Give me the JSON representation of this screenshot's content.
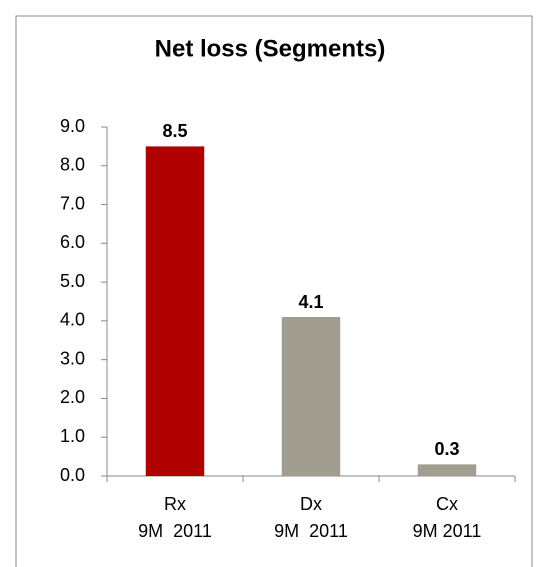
{
  "chart_data": {
    "type": "bar",
    "title": "Net loss (Segments)",
    "categories": [
      "Rx\n9M  2011",
      "Dx\n9M  2011",
      "Cx\n9M 2011"
    ],
    "values": [
      8.5,
      4.1,
      0.3
    ],
    "colors": [
      "#b00000",
      "#a29d91",
      "#a29d91"
    ],
    "ylim": [
      0,
      9
    ],
    "yticks": [
      {
        "value": 0,
        "label": "0.0"
      },
      {
        "value": 1,
        "label": "1.0"
      },
      {
        "value": 2,
        "label": "2.0"
      },
      {
        "value": 3,
        "label": "3.0"
      },
      {
        "value": 4,
        "label": "4.0"
      },
      {
        "value": 5,
        "label": "5.0"
      },
      {
        "value": 6,
        "label": "6.0"
      },
      {
        "value": 7,
        "label": "7.0"
      },
      {
        "value": 8,
        "label": "8.0"
      },
      {
        "value": 9,
        "label": "9.0"
      }
    ],
    "grid": false
  }
}
